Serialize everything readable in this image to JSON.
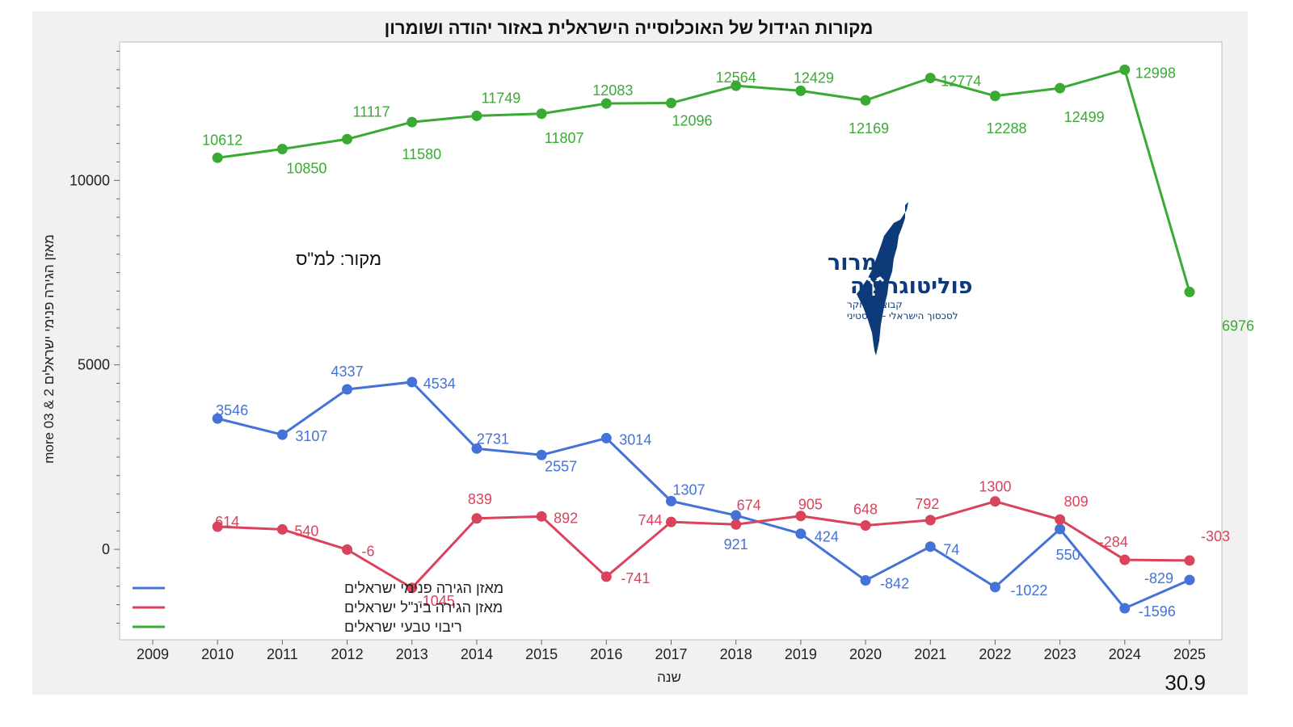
{
  "chart_data": {
    "type": "line",
    "title": "מקורות הגידול של האוכלוסייה הישראלית באזור יהודה ושומרון",
    "xlabel": "שנה",
    "ylabel": "מאזן הגירה פנימי ישראלים 2 & 03 more",
    "xlim": [
      2009,
      2025
    ],
    "ylim": [
      -2450,
      13750
    ],
    "x_ticks": [
      "2009",
      "2010",
      "2011",
      "2012",
      "2013",
      "2014",
      "2015",
      "2016",
      "2017",
      "2018",
      "2019",
      "2020",
      "2021",
      "2022",
      "2023",
      "2024",
      "2025"
    ],
    "y_ticks": [
      0,
      5000,
      10000
    ],
    "y_tick_labels": [
      "0",
      "5000",
      "10000"
    ],
    "legend_position": "bottom-left",
    "x": [
      2010,
      2011,
      2012,
      2013,
      2014,
      2015,
      2016,
      2017,
      2018,
      2019,
      2020,
      2021,
      2022,
      2023,
      2024,
      2025
    ],
    "series": [
      {
        "name": "ריבוי טבעי ישראלים",
        "color": "#3aaa35",
        "values": [
          10612,
          10850,
          11117,
          11580,
          11749,
          11807,
          12083,
          12096,
          12564,
          12429,
          12169,
          12774,
          12288,
          12499,
          12998,
          6976
        ],
        "labels": [
          "10612",
          "10850",
          "11117",
          "11580",
          "11749",
          "11807",
          "12083",
          "12096",
          "12564",
          "12429",
          "12169",
          "12774",
          "12288",
          "12499",
          "12998",
          "6976"
        ]
      },
      {
        "name": "מאזן הגירה פנימי ישראלים",
        "color": "#4472d6",
        "values": [
          3546,
          3107,
          4337,
          4534,
          2731,
          2557,
          3014,
          1307,
          921,
          424,
          -842,
          74,
          -1022,
          550,
          -1596,
          -829
        ],
        "labels": [
          "3546",
          "3107",
          "4337",
          "4534",
          "2731",
          "2557",
          "3014",
          "1307",
          "921",
          "424",
          "-842",
          "74",
          "-1022",
          "550",
          "-1596",
          "-829"
        ]
      },
      {
        "name": "מאזן הגירה בינ\"ל ישראלים",
        "color": "#d9435b",
        "values": [
          614,
          540,
          -6,
          -1045,
          839,
          892,
          -741,
          744,
          674,
          905,
          648,
          792,
          1300,
          809,
          -284,
          -303
        ],
        "labels": [
          "614",
          "540",
          "-6",
          "-1045",
          "839",
          "892",
          "-741",
          "744",
          "674",
          "905",
          "648",
          "792",
          "1300",
          "809",
          "-284",
          "-303"
        ]
      }
    ],
    "annotations": {
      "source": "מקור: למ\"ס",
      "corner_number": "30.9"
    }
  },
  "logo": {
    "line1": "תמרור",
    "line2": "פוליטוגרפיה",
    "line3": "קבוצת מחקר",
    "line4": "לסכסוך הישראלי - פלסטיני",
    "color": "#0d3b7a"
  }
}
